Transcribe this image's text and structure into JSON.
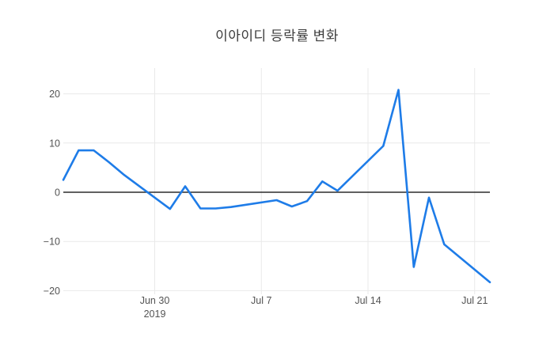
{
  "colors": {
    "line": "#1e7ce8",
    "zero_line": "#2b2b2b",
    "grid": "#e9e9e9",
    "tick_label": "#535353",
    "title": "#3d3d3d",
    "background": "#ffffff"
  },
  "chart_data": {
    "type": "line",
    "title": "이아이디 등락률 변화",
    "xlabel": "",
    "ylabel": "",
    "grid": true,
    "legend": false,
    "xlim": [
      "2019-06-24",
      "2019-07-22"
    ],
    "ylim": [
      -20.7,
      25.2
    ],
    "x": [
      "2019-06-24",
      "2019-06-25",
      "2019-06-26",
      "2019-06-27",
      "2019-06-28",
      "2019-07-01",
      "2019-07-02",
      "2019-07-03",
      "2019-07-04",
      "2019-07-05",
      "2019-07-08",
      "2019-07-09",
      "2019-07-10",
      "2019-07-11",
      "2019-07-12",
      "2019-07-15",
      "2019-07-16",
      "2019-07-17",
      "2019-07-18",
      "2019-07-19",
      "2019-07-22"
    ],
    "y": [
      2.5,
      8.5,
      8.5,
      6.1,
      3.5,
      -3.4,
      1.2,
      -3.3,
      -3.3,
      -3.0,
      -1.6,
      -2.9,
      -1.8,
      2.2,
      0.3,
      9.4,
      20.8,
      -15.2,
      -1.1,
      -10.6,
      -18.3
    ],
    "series_name": "등락률",
    "y_ticks": [
      {
        "value": 20,
        "label": "20"
      },
      {
        "value": 10,
        "label": "10"
      },
      {
        "value": 0,
        "label": "0"
      },
      {
        "value": -10,
        "label": "−10"
      },
      {
        "value": -20,
        "label": "−20"
      }
    ],
    "x_ticks": [
      {
        "date": "2019-06-30",
        "label": "Jun 30",
        "sublabel": "2019"
      },
      {
        "date": "2019-07-07",
        "label": "Jul 7",
        "sublabel": ""
      },
      {
        "date": "2019-07-14",
        "label": "Jul 14",
        "sublabel": ""
      },
      {
        "date": "2019-07-21",
        "label": "Jul 21",
        "sublabel": ""
      }
    ]
  }
}
